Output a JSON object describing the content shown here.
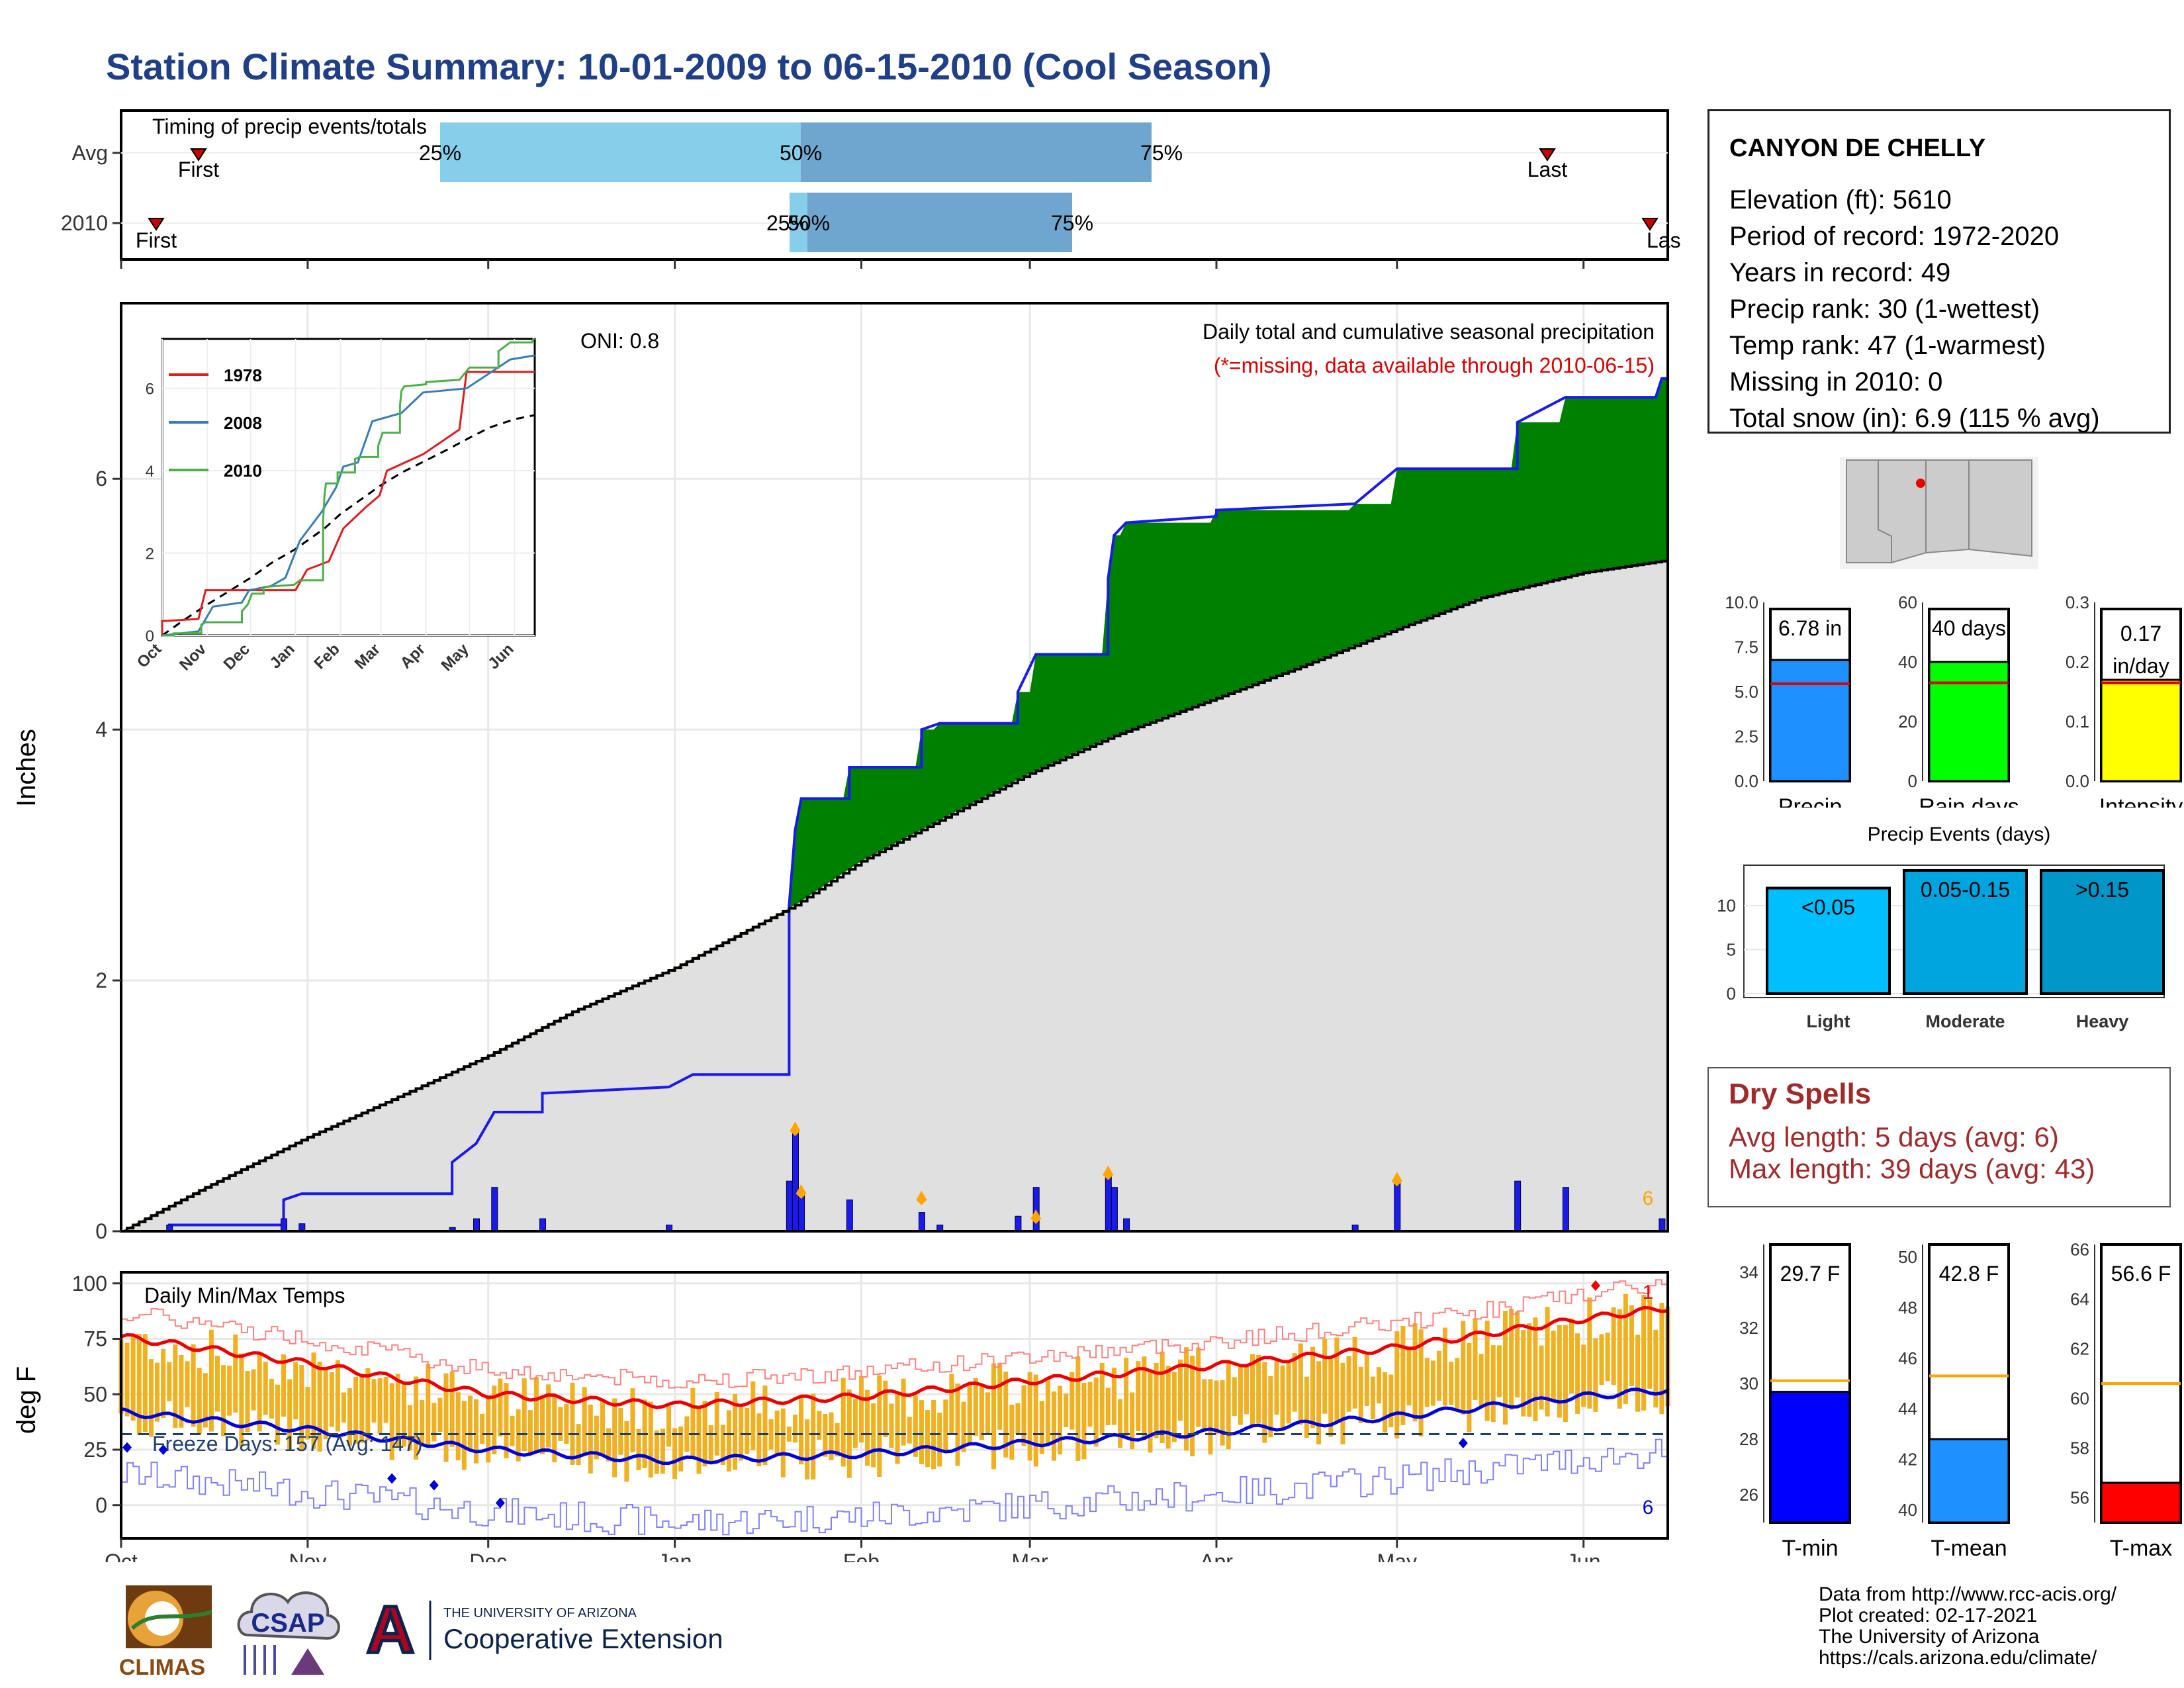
{
  "title": "Station Climate Summary: 10-01-2009 to 06-15-2010 (Cool Season)",
  "timing_panel": {
    "label": "Timing of precip events/totals",
    "rows": [
      "Avg",
      "2010"
    ],
    "avg": {
      "first": "First",
      "last": "Last",
      "p25": "25%",
      "p50": "50%",
      "p75": "75%"
    },
    "y2010": {
      "first": "First",
      "last": "Las",
      "p25": "25%",
      "p50": "50%",
      "p75": "75%"
    }
  },
  "precip_panel": {
    "ylabel": "Inches",
    "oni": "ONI: 0.8",
    "title": "Daily total and cumulative seasonal precipitation",
    "note": "(*=missing, data available through 2010-06-15)",
    "yticks": [
      "0",
      "2",
      "4",
      "6"
    ],
    "corner_count": "6"
  },
  "inset": {
    "legend": [
      "1978",
      "2008",
      "2010"
    ],
    "yticks": [
      "0",
      "2",
      "4",
      "6"
    ],
    "xticks": [
      "Oct",
      "Nov",
      "Dec",
      "Jan",
      "Feb",
      "Mar",
      "Apr",
      "May",
      "Jun"
    ]
  },
  "temp_panel": {
    "ylabel": "deg F",
    "label": "Daily Min/Max Temps",
    "freeze": "Freeze Days: 157 (Avg: 147)",
    "yticks": [
      "100",
      "75",
      "50",
      "25",
      "0"
    ],
    "count_top": "1",
    "count_bottom": "6"
  },
  "months": [
    "Oct",
    "Nov",
    "Dec",
    "Jan",
    "Feb",
    "Mar",
    "Apr",
    "May",
    "Jun"
  ],
  "station": {
    "name": "CANYON DE CHELLY",
    "elevation": "Elevation (ft): 5610",
    "period": "Period of record: 1972-2020",
    "years": "Years in record: 49",
    "precip_rank": "Precip rank: 30 (1-wettest)",
    "temp_rank": "Temp rank: 47 (1-warmest)",
    "missing": "Missing in 2010: 0",
    "snow": "Total snow (in): 6.9 (115 % avg)"
  },
  "precip_bars": {
    "precip": {
      "label": "Precip",
      "value_text": "6.78 in",
      "yticks": [
        "10.0",
        "7.5",
        "5.0",
        "2.5",
        "0.0"
      ]
    },
    "raindays": {
      "label": "Rain days",
      "value_text": "40 days",
      "yticks": [
        "60",
        "40",
        "20",
        "0"
      ]
    },
    "intensity": {
      "label": "Intensity",
      "value_text": "0.17",
      "value_unit": "in/day",
      "yticks": [
        "0.3",
        "0.2",
        "0.1",
        "0.0"
      ]
    }
  },
  "events": {
    "title": "Precip Events (days)",
    "yticks": [
      "10",
      "5",
      "0"
    ],
    "bars": [
      {
        "label": "Light",
        "text": "<0.05",
        "value": 12,
        "color": "#00bfff"
      },
      {
        "label": "Moderate",
        "text": "0.05-0.15",
        "value": 14,
        "color": "#00a5e0"
      },
      {
        "label": "Heavy",
        "text": ">0.15",
        "value": 14,
        "color": "#0096c7"
      }
    ]
  },
  "dry_spells": {
    "title": "Dry Spells",
    "avg": "Avg length: 5 days (avg: 6)",
    "max": "Max length: 39 days (avg: 43)"
  },
  "temp_bars": {
    "tmin": {
      "label": "T-min",
      "value_text": "29.7 F",
      "yticks": [
        "34",
        "32",
        "30",
        "28",
        "26"
      ]
    },
    "tmean": {
      "label": "T-mean",
      "value_text": "42.8 F",
      "yticks": [
        "50",
        "48",
        "46",
        "44",
        "42",
        "40"
      ]
    },
    "tmax": {
      "label": "T-max",
      "value_text": "56.6 F",
      "yticks": [
        "66",
        "64",
        "62",
        "60",
        "58",
        "56"
      ]
    }
  },
  "logos": {
    "climas": "CLIMAS",
    "csap": "CSAP",
    "ua_small": "THE UNIVERSITY OF ARIZONA",
    "ua_big": "Cooperative Extension",
    "ua_letter": "A"
  },
  "footer": [
    "Data from http://www.rcc-acis.org/",
    "Plot created: 02-17-2021",
    "The University of Arizona",
    "https://cals.arizona.edu/climate/"
  ],
  "chart_data": [
    {
      "type": "line",
      "title": "Daily total and cumulative seasonal precipitation",
      "ylabel": "Inches",
      "ylim": [
        0,
        7.4
      ],
      "x": [
        "2009-10-01",
        "2009-10-15",
        "2009-11-01",
        "2009-11-15",
        "2009-12-01",
        "2009-12-15",
        "2010-01-01",
        "2010-01-15",
        "2010-01-21",
        "2010-02-01",
        "2010-02-15",
        "2010-03-01",
        "2010-03-15",
        "2010-04-01",
        "2010-04-15",
        "2010-05-01",
        "2010-05-15",
        "2010-06-01",
        "2010-06-15"
      ],
      "series": [
        {
          "name": "2010",
          "values": [
            0,
            0.05,
            0.3,
            0.3,
            0.95,
            1.1,
            1.25,
            1.25,
            3.2,
            3.7,
            4.05,
            4.6,
            5.65,
            5.7,
            5.8,
            6.45,
            6.8,
            6.8,
            6.8
          ]
        },
        {
          "name": "Avg",
          "values": [
            0,
            0.35,
            0.75,
            1.05,
            1.4,
            1.75,
            2.1,
            2.45,
            2.6,
            2.95,
            3.3,
            3.65,
            3.95,
            4.25,
            4.5,
            4.8,
            5.05,
            5.25,
            5.35
          ]
        }
      ]
    },
    {
      "type": "line",
      "title": "Daily Min/Max Temps",
      "ylabel": "deg F",
      "ylim": [
        -15,
        105
      ],
      "x": [
        "2009-10-01",
        "2009-11-01",
        "2009-12-01",
        "2010-01-01",
        "2010-02-01",
        "2010-03-01",
        "2010-04-01",
        "2010-05-01",
        "2010-06-01",
        "2010-06-15"
      ],
      "series": [
        {
          "name": "Avg max",
          "values": [
            76,
            64,
            50,
            45,
            49,
            56,
            63,
            71,
            84,
            89
          ]
        },
        {
          "name": "Avg min",
          "values": [
            42,
            34,
            25,
            20,
            23,
            28,
            33,
            40,
            49,
            52
          ]
        }
      ]
    },
    {
      "type": "bar",
      "categories": [
        "Precip",
        "Rain days",
        "Intensity"
      ],
      "values": [
        6.78,
        40,
        0.17
      ],
      "averages": [
        5.45,
        33,
        0.165
      ]
    },
    {
      "type": "bar",
      "title": "Precip Events (days)",
      "categories": [
        "Light",
        "Moderate",
        "Heavy"
      ],
      "values": [
        12,
        14,
        14
      ],
      "ylim": [
        0,
        14
      ]
    },
    {
      "type": "bar",
      "categories": [
        "T-min",
        "T-mean",
        "T-max"
      ],
      "values": [
        29.7,
        42.8,
        56.6
      ],
      "averages": [
        30.1,
        45.3,
        60.6
      ]
    }
  ]
}
